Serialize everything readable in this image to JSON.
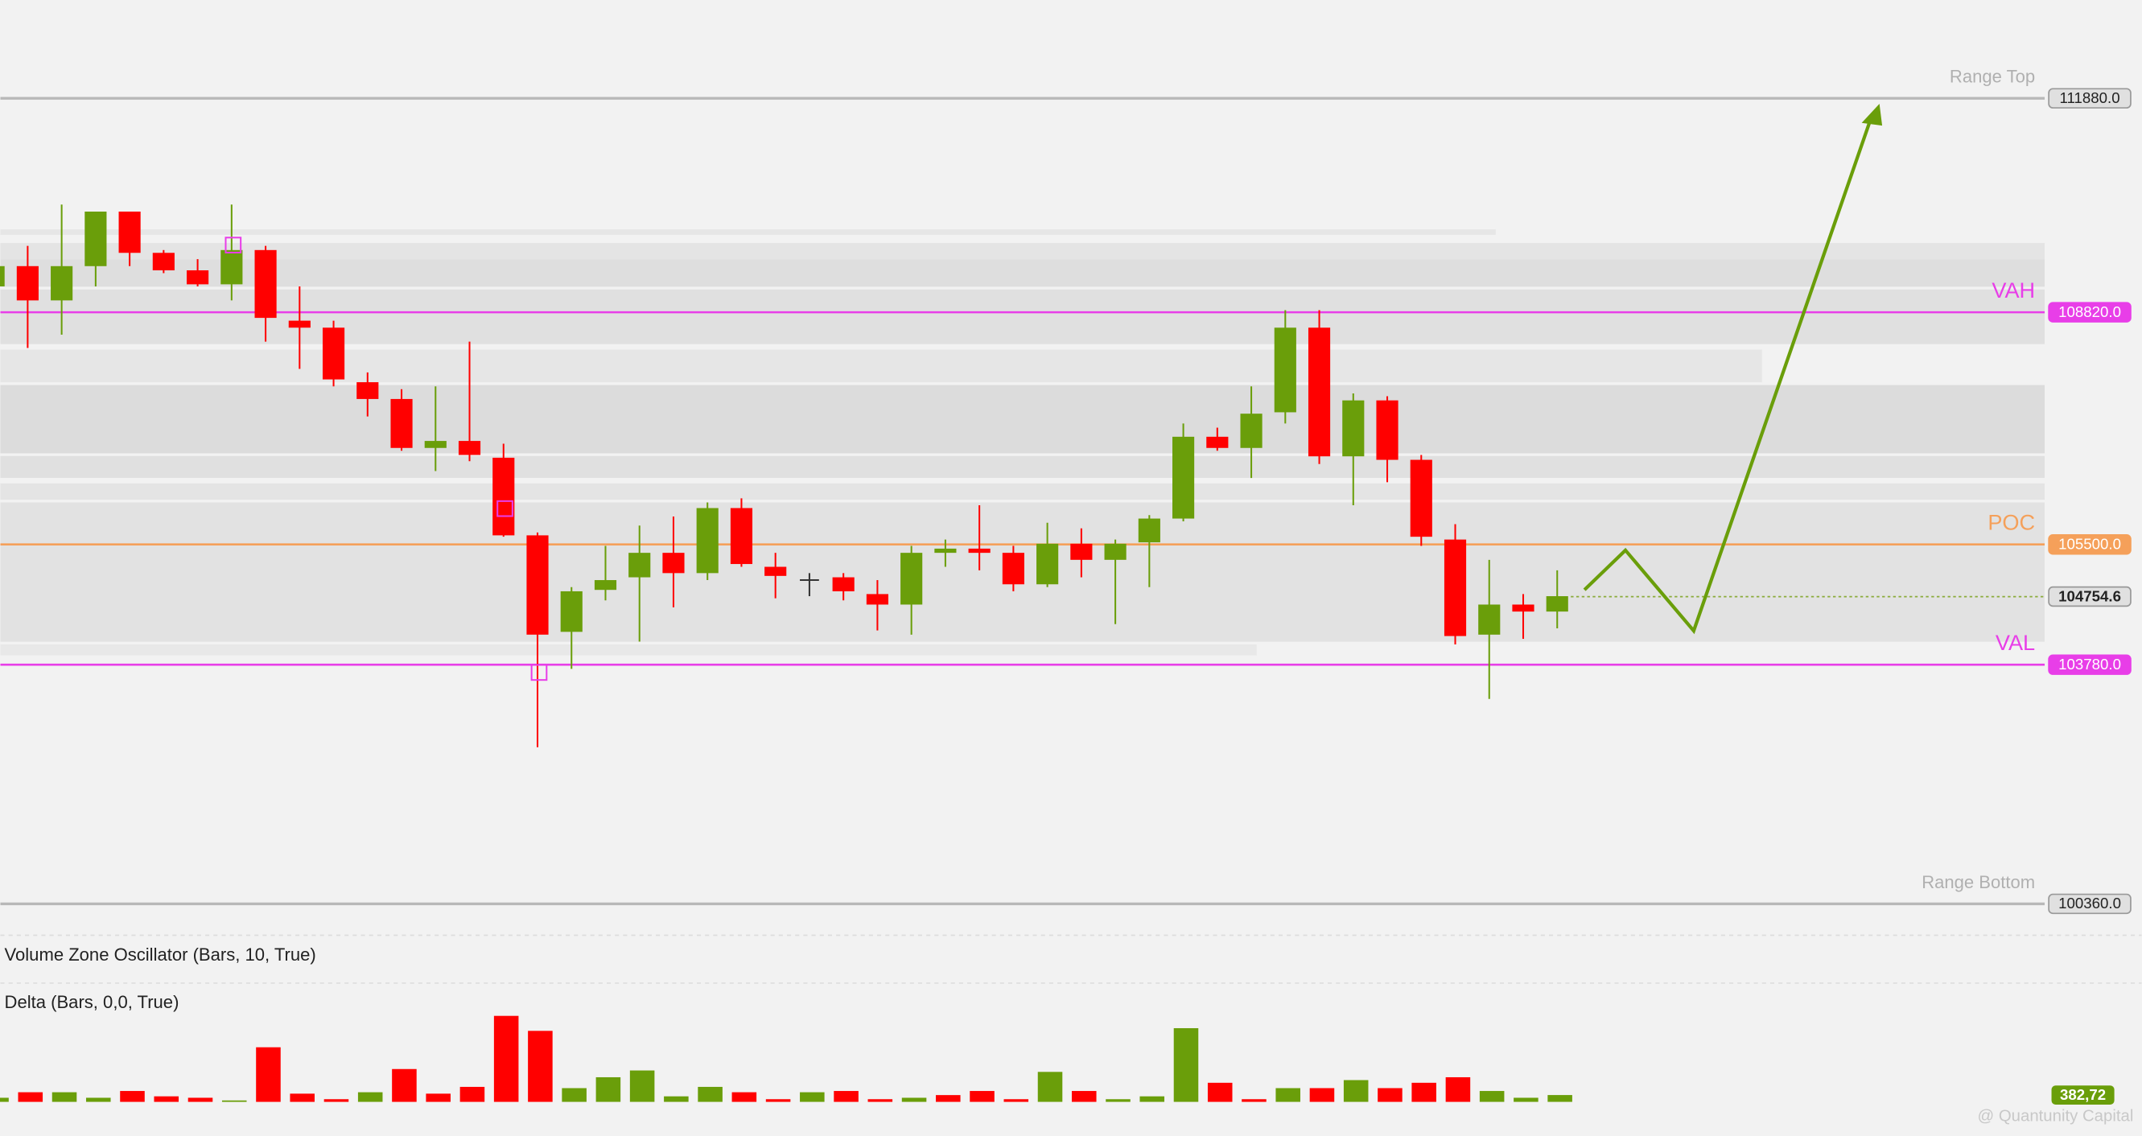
{
  "chart_data": {
    "type": "candlestick",
    "up_color": "#6a9e0a",
    "down_color": "#ff0000",
    "doji_color": "#333333",
    "ylim": [
      100008,
      113286
    ],
    "candles": {
      "open": [
        109190,
        109480,
        108990,
        109480,
        110260,
        109670,
        109420,
        109220,
        109710,
        108700,
        108600,
        107820,
        107580,
        106880,
        106980,
        106740,
        105630,
        104250,
        104850,
        105030,
        105380,
        105090,
        106020,
        105180,
        104990,
        105030,
        104790,
        104640,
        105380,
        105440,
        105380,
        104930,
        105510,
        105280,
        105530,
        105870,
        107040,
        106880,
        107390,
        108600,
        106760,
        107560,
        106710,
        105570,
        104210,
        104640,
        104540
      ],
      "high": [
        109580,
        109770,
        110360,
        110260,
        110260,
        109710,
        109580,
        110360,
        109770,
        109190,
        108700,
        107960,
        107720,
        107760,
        108400,
        106940,
        105670,
        104890,
        105480,
        105770,
        105900,
        106100,
        106160,
        105380,
        105090,
        105090,
        104990,
        105480,
        105570,
        106060,
        105480,
        105810,
        105730,
        105570,
        105920,
        107230,
        107170,
        107760,
        108850,
        108850,
        107660,
        107620,
        106780,
        105790,
        105280,
        104790,
        105130
      ],
      "low": [
        109090,
        108310,
        108500,
        109190,
        109480,
        109380,
        109190,
        108990,
        108400,
        108010,
        107760,
        107330,
        106840,
        106550,
        106690,
        105610,
        102600,
        103720,
        104700,
        104110,
        104600,
        104990,
        105180,
        104730,
        104760,
        104700,
        104270,
        104210,
        105180,
        105130,
        104830,
        104890,
        105030,
        104360,
        104890,
        105830,
        106840,
        106450,
        107230,
        106650,
        106060,
        106390,
        105480,
        104070,
        103290,
        104150,
        104300
      ],
      "close": [
        109480,
        108990,
        109480,
        110260,
        109670,
        109420,
        109220,
        109710,
        108740,
        108600,
        107860,
        107580,
        106880,
        106980,
        106780,
        105630,
        104210,
        104830,
        104990,
        105380,
        105090,
        106020,
        105220,
        105050,
        104990,
        104830,
        104640,
        105380,
        105440,
        105380,
        104930,
        105510,
        105280,
        105510,
        105870,
        107040,
        106880,
        107370,
        108600,
        106760,
        107560,
        106710,
        105610,
        104190,
        104640,
        104540,
        104760
      ]
    },
    "levels": [
      {
        "name": "Range Top",
        "value": 111880,
        "label": "111880.0",
        "color": "#b8b8b8"
      },
      {
        "name": "VAH",
        "value": 108820,
        "label": "108820.0",
        "color": "#e83ee8"
      },
      {
        "name": "POC",
        "value": 105500,
        "label": "105500.0",
        "color": "#f5a05a"
      },
      {
        "name": "VAL",
        "value": 103780,
        "label": "103780.0",
        "color": "#e83ee8"
      },
      {
        "name": "Range Bottom",
        "value": 100360,
        "label": "100360.0",
        "color": "#b8b8b8"
      }
    ],
    "last_price": 104754.6,
    "indicator_title": "Volume Zone Oscillator (Bars, 10, True)",
    "delta": {
      "title": "Delta (Bars, 0,0, True)",
      "ylim": [
        0,
        6000
      ],
      "values": [
        230,
        540,
        540,
        230,
        610,
        310,
        230,
        80,
        3060,
        460,
        150,
        540,
        1840,
        460,
        840,
        4820,
        3980,
        770,
        1380,
        1760,
        310,
        840,
        540,
        150,
        540,
        610,
        150,
        230,
        380,
        610,
        150,
        1680,
        610,
        150,
        310,
        4130,
        1070,
        150,
        770,
        770,
        1220,
        770,
        1070,
        1380,
        610,
        230,
        382.72
      ],
      "colors": [
        "#6a9e0a",
        "#ff0000",
        "#6a9e0a",
        "#6a9e0a",
        "#ff0000",
        "#ff0000",
        "#ff0000",
        "#6a9e0a",
        "#ff0000",
        "#ff0000",
        "#ff0000",
        "#6a9e0a",
        "#ff0000",
        "#ff0000",
        "#ff0000",
        "#ff0000",
        "#ff0000",
        "#6a9e0a",
        "#6a9e0a",
        "#6a9e0a",
        "#6a9e0a",
        "#6a9e0a",
        "#ff0000",
        "#ff0000",
        "#6a9e0a",
        "#ff0000",
        "#ff0000",
        "#6a9e0a",
        "#ff0000",
        "#ff0000",
        "#ff0000",
        "#6a9e0a",
        "#ff0000",
        "#6a9e0a",
        "#6a9e0a",
        "#6a9e0a",
        "#ff0000",
        "#ff0000",
        "#6a9e0a",
        "#ff0000",
        "#6a9e0a",
        "#ff0000",
        "#ff0000",
        "#ff0000",
        "#6a9e0a",
        "#6a9e0a",
        "#6a9e0a"
      ],
      "last_value_label": "382,72"
    },
    "watermark": "@ Quantunity Capital"
  }
}
